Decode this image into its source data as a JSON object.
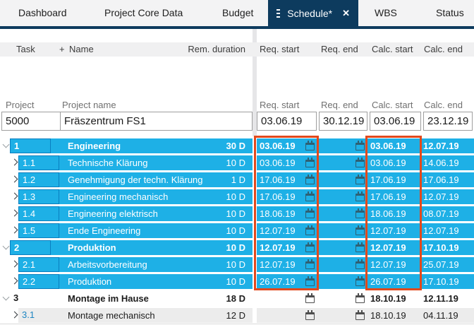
{
  "tabs": {
    "items": [
      {
        "label": "Dashboard"
      },
      {
        "label": "Project Core Data"
      },
      {
        "label": "Budget"
      },
      {
        "label": "Schedule*",
        "active": true
      },
      {
        "label": "WBS"
      },
      {
        "label": "Status"
      }
    ]
  },
  "table": {
    "headers": {
      "task": "Task",
      "add": "+",
      "name": "Name",
      "rem_duration": "Rem. duration",
      "req_start": "Req. start",
      "req_end": "Req. end",
      "calc_start": "Calc. start",
      "calc_end": "Calc. end"
    }
  },
  "project": {
    "labels": {
      "project": "Project",
      "project_name": "Project name",
      "req_start": "Req. start",
      "req_end": "Req. end",
      "calc_start": "Calc. start",
      "calc_end": "Calc. end"
    },
    "values": {
      "id": "5000",
      "name": "Fräszentrum FS1",
      "req_start": "03.06.19",
      "req_end": "30.12.19",
      "calc_start": "03.06.19",
      "calc_end": "23.12.19"
    }
  },
  "rows": [
    {
      "num": "1",
      "level": 0,
      "expanded": true,
      "bold": true,
      "style": "blue",
      "name": "Engineering",
      "dur": "30 D",
      "req_start": "03.06.19",
      "calc_start": "03.06.19",
      "calc_end": "12.07.19"
    },
    {
      "num": "1.1",
      "level": 1,
      "expanded": false,
      "bold": false,
      "style": "blue",
      "name": "Technische Klärung",
      "dur": "10 D",
      "req_start": "03.06.19",
      "calc_start": "03.06.19",
      "calc_end": "14.06.19"
    },
    {
      "num": "1.2",
      "level": 1,
      "expanded": false,
      "bold": false,
      "style": "blue",
      "name": "Genehmigung der techn. Klärung",
      "dur": "1 D",
      "req_start": "17.06.19",
      "calc_start": "17.06.19",
      "calc_end": "17.06.19"
    },
    {
      "num": "1.3",
      "level": 1,
      "expanded": false,
      "bold": false,
      "style": "blue",
      "name": "Engineering mechanisch",
      "dur": "10 D",
      "req_start": "17.06.19",
      "calc_start": "17.06.19",
      "calc_end": "12.07.19"
    },
    {
      "num": "1.4",
      "level": 1,
      "expanded": false,
      "bold": false,
      "style": "blue",
      "name": "Engineering elektrisch",
      "dur": "10 D",
      "req_start": "18.06.19",
      "calc_start": "18.06.19",
      "calc_end": "08.07.19"
    },
    {
      "num": "1.5",
      "level": 1,
      "expanded": false,
      "bold": false,
      "style": "blue",
      "name": "Ende Engineering",
      "dur": "10 D",
      "req_start": "12.07.19",
      "calc_start": "12.07.19",
      "calc_end": "12.07.19"
    },
    {
      "num": "2",
      "level": 0,
      "expanded": true,
      "bold": true,
      "style": "blue",
      "name": "Produktion",
      "dur": "10 D",
      "req_start": "12.07.19",
      "calc_start": "12.07.19",
      "calc_end": "17.10.19"
    },
    {
      "num": "2.1",
      "level": 1,
      "expanded": false,
      "bold": false,
      "style": "blue",
      "name": "Arbeitsvorbereitung",
      "dur": "10 D",
      "req_start": "12.07.19",
      "calc_start": "12.07.19",
      "calc_end": "25.07.19"
    },
    {
      "num": "2.2",
      "level": 1,
      "expanded": false,
      "bold": false,
      "style": "blue",
      "name": "Produktion",
      "dur": "10 D",
      "req_start": "26.07.19",
      "calc_start": "26.07.19",
      "calc_end": "17.10.19"
    },
    {
      "num": "3",
      "level": 0,
      "expanded": true,
      "bold": true,
      "style": "white",
      "name": "Montage im Hause",
      "dur": "18 D",
      "req_start": "",
      "calc_start": "18.10.19",
      "calc_end": "12.11.19"
    },
    {
      "num": "3.1",
      "level": 1,
      "expanded": false,
      "bold": false,
      "style": "gray",
      "name": "Montage mechanisch",
      "dur": "12 D",
      "req_start": "",
      "calc_start": "18.10.19",
      "calc_end": "04.11.19"
    }
  ],
  "colors": {
    "row_blue": "#1eb0e6",
    "active_tab_navy": "#0d3b5e",
    "highlight_red": "#e2491c"
  }
}
